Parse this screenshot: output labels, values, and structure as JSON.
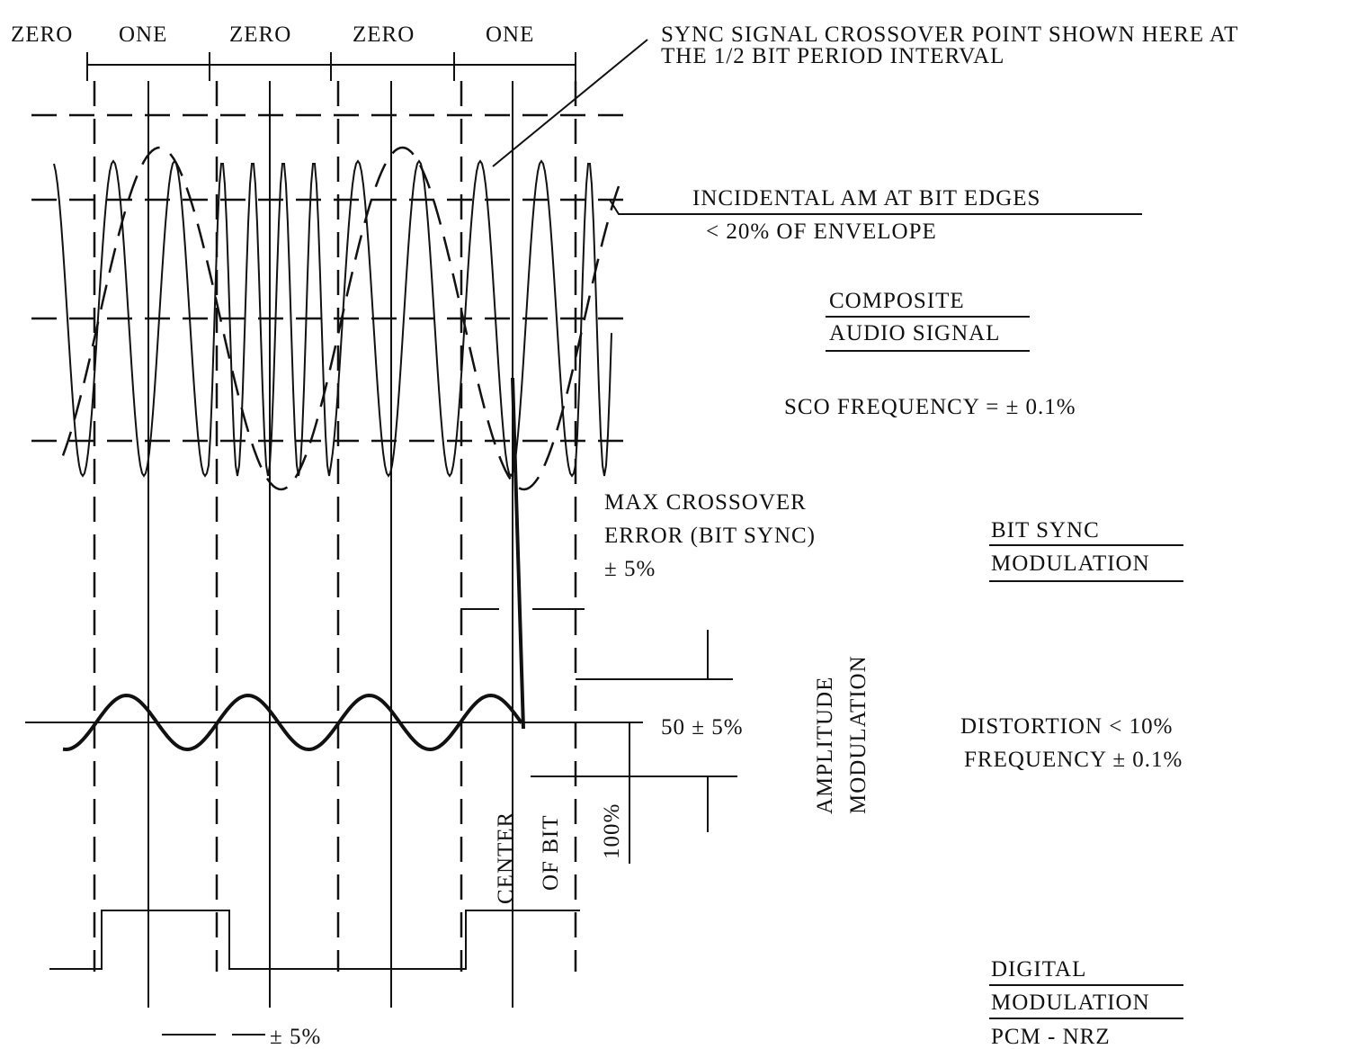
{
  "bits": [
    "ZERO",
    "ONE",
    "ZERO",
    "ZERO",
    "ONE"
  ],
  "callout": {
    "line1": "SYNC SIGNAL CROSSOVER POINT SHOWN HERE AT",
    "line2": "THE 1/2 BIT PERIOD INTERVAL"
  },
  "incidental_am": {
    "line1": "INCIDENTAL AM AT BIT EDGES",
    "line2": "< 20% OF ENVELOPE"
  },
  "composite": {
    "line1": "COMPOSITE",
    "line2": "AUDIO SIGNAL"
  },
  "sco_frequency": "SCO FREQUENCY = ± 0.1%",
  "max_crossover": {
    "line1": "MAX CROSSOVER",
    "line2": "ERROR (BIT SYNC)",
    "line3": "± 5%"
  },
  "bit_sync": {
    "line1": "BIT SYNC",
    "line2": "MODULATION"
  },
  "amplitude_modulation": {
    "line1": "AMPLITUDE",
    "line2": "MODULATION"
  },
  "level": "50 ± 5%",
  "full_scale": "100%",
  "center_of_bit": {
    "line1": "CENTER",
    "line2": "OF BIT"
  },
  "sync_specs": {
    "line1": "DISTORTION < 10%",
    "line2": "FREQUENCY ± 0.1%"
  },
  "digital": {
    "line1": "DIGITAL",
    "line2": "MODULATION",
    "line3": "PCM - NRZ"
  },
  "edge_tolerance": "± 5%"
}
